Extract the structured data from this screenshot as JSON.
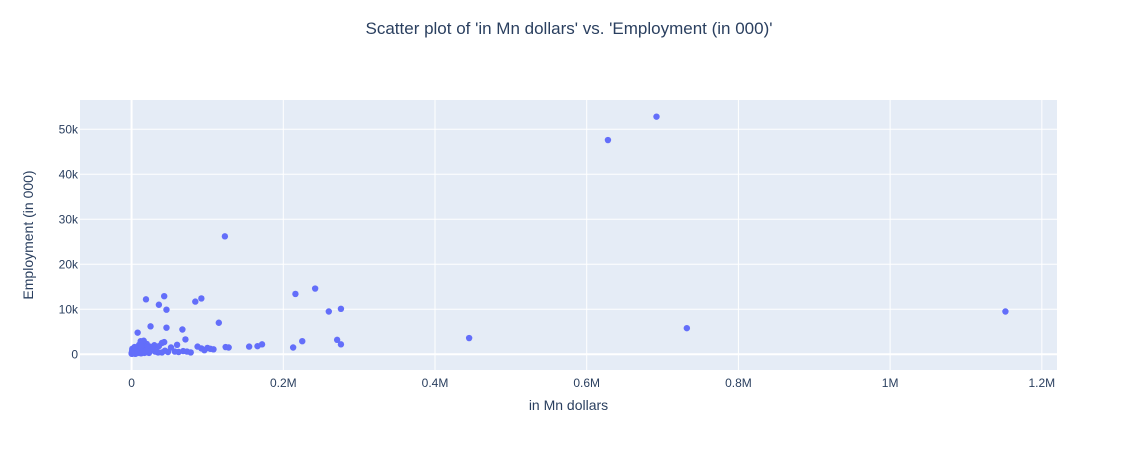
{
  "chart_data": {
    "type": "scatter",
    "title": "Scatter plot of 'in Mn dollars' vs. 'Employment (in 000)'",
    "xlabel": "in Mn dollars",
    "ylabel": "Employment (in 000)",
    "xlim": [
      -68000,
      1220000
    ],
    "ylim": [
      -3500,
      56500
    ],
    "xticks": [
      0,
      200000,
      400000,
      600000,
      800000,
      1000000,
      1200000
    ],
    "xtick_labels": [
      "0",
      "0.2M",
      "0.4M",
      "0.6M",
      "0.8M",
      "1M",
      "1.2M"
    ],
    "yticks": [
      0,
      10000,
      20000,
      30000,
      40000,
      50000
    ],
    "ytick_labels": [
      "0",
      "10k",
      "20k",
      "30k",
      "40k",
      "50k"
    ],
    "grid": true,
    "colors": {
      "marker": "#636efa",
      "plot_bg": "#e5ecf6",
      "grid": "#ffffff",
      "text": "#2a3f5f"
    },
    "x": [
      692000,
      628000,
      1152000,
      732000,
      445000,
      123000,
      242000,
      216000,
      92000,
      43000,
      19000,
      84000,
      276000,
      260000,
      36000,
      46000,
      115000,
      25000,
      46000,
      67000,
      8000,
      71000,
      43000,
      40000,
      60000,
      271000,
      225000,
      276000,
      172000,
      166000,
      155000,
      128000,
      124000,
      108000,
      104000,
      100000,
      96000,
      92000,
      87000,
      78000,
      73000,
      68000,
      62000,
      57000,
      52000,
      48000,
      44000,
      40000,
      36000,
      33000,
      30000,
      27000,
      24000,
      22000,
      20000,
      18000,
      16000,
      14000,
      13000,
      12000,
      11000,
      10000,
      9000,
      8000,
      7000,
      6000,
      5000,
      4000,
      3000,
      2500,
      2000,
      1500,
      1000,
      500,
      200,
      100,
      15000,
      17000,
      13000,
      21000,
      26000,
      31000,
      28000,
      11000,
      9500,
      7500,
      6500,
      5500,
      4500,
      3500,
      2800,
      2200,
      1800,
      1200,
      800,
      400,
      23000,
      19000,
      14500,
      12500,
      10500,
      8500,
      6000,
      5000,
      4000,
      3000,
      1600,
      900,
      300,
      35000,
      29000,
      213000
    ],
    "y": [
      52800,
      47600,
      9500,
      5800,
      3600,
      26200,
      14600,
      13400,
      12400,
      12900,
      12200,
      11700,
      10100,
      9500,
      11000,
      9900,
      7000,
      6200,
      5900,
      5500,
      4800,
      3300,
      2700,
      2500,
      2100,
      3200,
      2900,
      2200,
      2200,
      1800,
      1700,
      1500,
      1600,
      1100,
      1200,
      1400,
      900,
      1300,
      1700,
      400,
      600,
      700,
      500,
      600,
      1500,
      500,
      800,
      400,
      1800,
      600,
      2000,
      900,
      1700,
      400,
      2300,
      1500,
      3000,
      2600,
      1200,
      2900,
      700,
      2100,
      1600,
      900,
      1300,
      500,
      800,
      400,
      300,
      700,
      500,
      200,
      900,
      100,
      300,
      150,
      700,
      300,
      1900,
      1400,
      1000,
      600,
      1200,
      1800,
      600,
      400,
      1000,
      1400,
      200,
      1100,
      300,
      800,
      500,
      200,
      600,
      400,
      300,
      800,
      500,
      200,
      1000,
      300,
      700,
      100,
      1600,
      900,
      400,
      1200,
      200,
      400,
      1200,
      1500
    ]
  }
}
